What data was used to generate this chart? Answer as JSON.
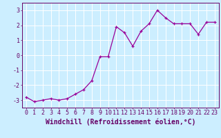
{
  "x": [
    0,
    1,
    2,
    3,
    4,
    5,
    6,
    7,
    8,
    9,
    10,
    11,
    12,
    13,
    14,
    15,
    16,
    17,
    18,
    19,
    20,
    21,
    22,
    23
  ],
  "y": [
    -2.8,
    -3.1,
    -3.0,
    -2.9,
    -3.0,
    -2.9,
    -2.6,
    -2.3,
    -1.7,
    -0.1,
    -0.1,
    1.9,
    1.5,
    0.6,
    1.6,
    2.1,
    3.0,
    2.5,
    2.1,
    2.1,
    2.1,
    1.4,
    2.2,
    2.2
  ],
  "line_color": "#990099",
  "marker": "+",
  "bg_color": "#cceeff",
  "grid_color": "#ffffff",
  "xlabel": "Windchill (Refroidissement éolien,°C)",
  "xlabel_color": "#660066",
  "tick_label_color": "#660066",
  "ylim": [
    -3.5,
    3.5
  ],
  "xlim": [
    -0.5,
    23.5
  ],
  "yticks": [
    -3,
    -2,
    -1,
    0,
    1,
    2,
    3
  ],
  "xticks": [
    0,
    1,
    2,
    3,
    4,
    5,
    6,
    7,
    8,
    9,
    10,
    11,
    12,
    13,
    14,
    15,
    16,
    17,
    18,
    19,
    20,
    21,
    22,
    23
  ],
  "xtick_labels": [
    "0",
    "1",
    "2",
    "3",
    "4",
    "5",
    "6",
    "7",
    "8",
    "9",
    "10",
    "11",
    "12",
    "13",
    "14",
    "15",
    "16",
    "17",
    "18",
    "19",
    "20",
    "21",
    "22",
    "23"
  ],
  "grid_major_color": "#ffffff",
  "markersize": 3,
  "linewidth": 0.9,
  "tick_fontsize": 6,
  "xlabel_fontsize": 7
}
